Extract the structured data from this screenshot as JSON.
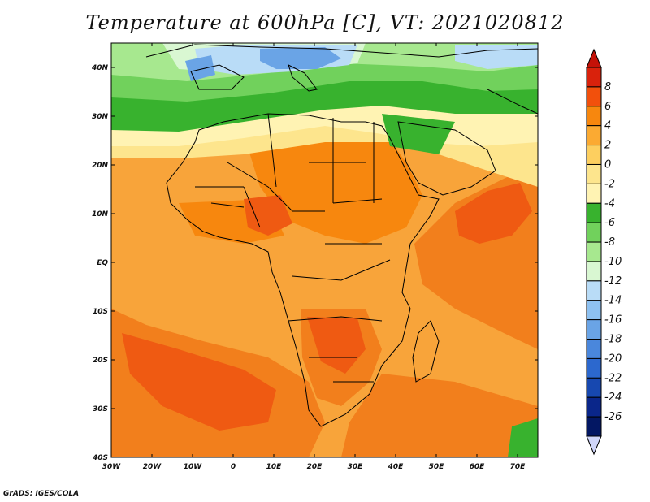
{
  "title": "Temperature at 600hPa [C], VT: 2021020812",
  "credit": "GrADS: IGES/COLA",
  "lon_labels": [
    "30W",
    "20W",
    "10W",
    "0",
    "10E",
    "20E",
    "30E",
    "40E",
    "50E",
    "60E",
    "70E"
  ],
  "lat_labels": [
    "40N",
    "30N",
    "20N",
    "10N",
    "EQ",
    "10S",
    "20S",
    "30S",
    "40S"
  ],
  "colorbar": {
    "labels": [
      "8",
      "6",
      "4",
      "2",
      "0",
      "-2",
      "-4",
      "-6",
      "-8",
      "-10",
      "-12",
      "-14",
      "-16",
      "-18",
      "-20",
      "-22",
      "-24",
      "-26"
    ],
    "colors": [
      "#d9220c",
      "#f2500c",
      "#f7870e",
      "#fbaa32",
      "#fdcf5f",
      "#fde58d",
      "#fff3b3",
      "#38b22e",
      "#71d15c",
      "#a7e88f",
      "#d9f7d2",
      "#b9dcf7",
      "#8ec1f1",
      "#6aa4e6",
      "#4a87dc",
      "#2c68ce",
      "#1748b0",
      "#0a268a",
      "#031763"
    ],
    "under_color": "#d0d6fa",
    "over_color": "#c41208"
  },
  "map": {
    "lon_range": [
      -30,
      75
    ],
    "lat_range": [
      -40,
      45
    ],
    "colors": {
      "ocean_bg": "#f8a43a",
      "warm": "#f27f1c",
      "hot": "#ef5a12",
      "pale": "#fde58d",
      "cream": "#fff3b3",
      "green": "#38b22e",
      "light_green": "#71d15c",
      "lighter_green": "#a7e88f",
      "very_light_green": "#d9f7d2",
      "light_blue": "#b9dcf7",
      "blue": "#6aa4e6",
      "border": "#000000"
    }
  }
}
